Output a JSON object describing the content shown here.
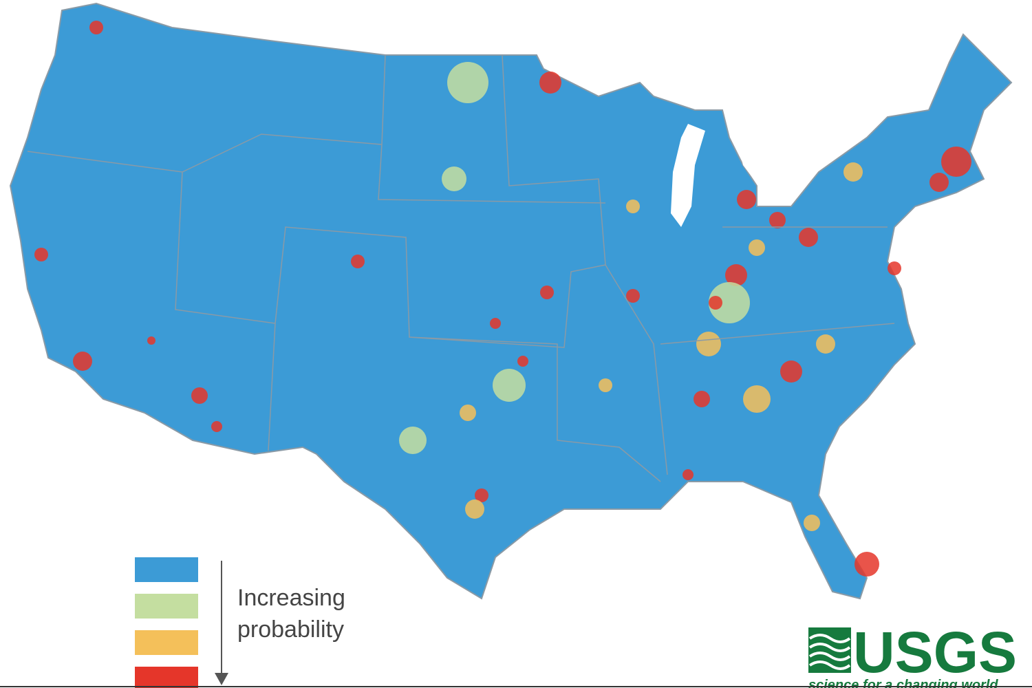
{
  "map": {
    "land_color": "#3c9bd6",
    "border_color": "#8a9aa6"
  },
  "legend": {
    "colors": [
      "#3c9bd6",
      "#c4dea0",
      "#f4c05a",
      "#e5362a"
    ],
    "label_lines": [
      "Increasing",
      "probability"
    ]
  },
  "logo": {
    "name": "USGS",
    "tagline": "science for a changing world",
    "color": "#167a3e"
  }
}
